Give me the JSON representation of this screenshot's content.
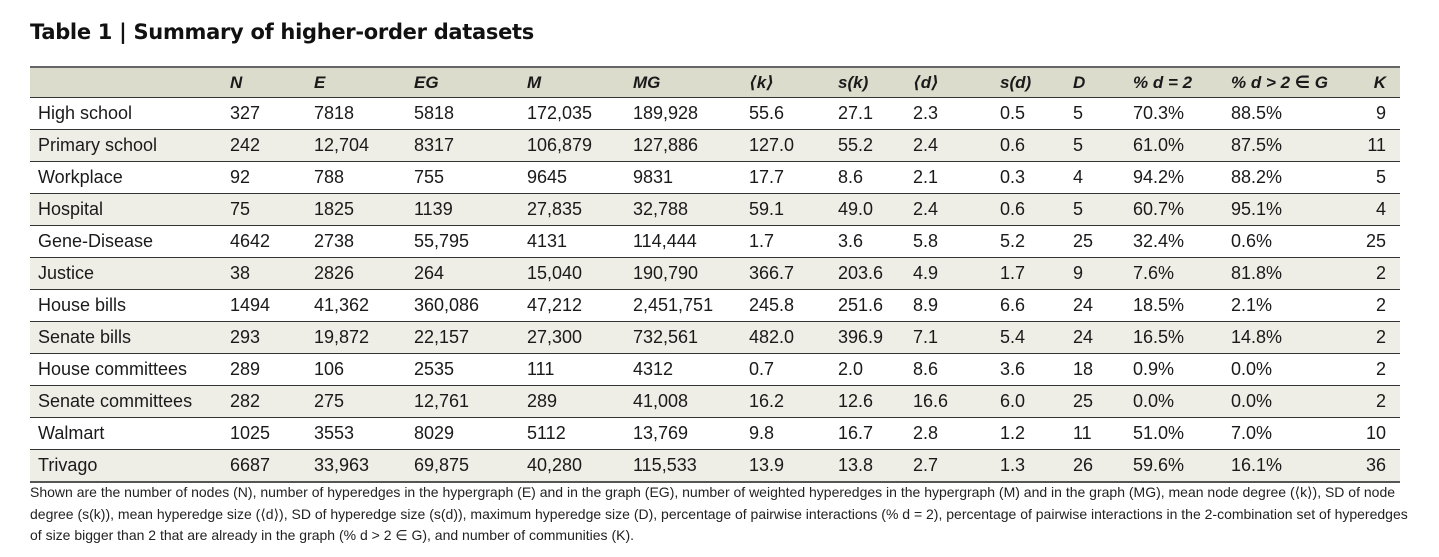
{
  "title": "Table 1 | Summary of higher-order datasets",
  "columns": [
    "",
    "N",
    "E",
    "EG",
    "M",
    "MG",
    "⟨k⟩",
    "s(k)",
    "⟨d⟩",
    "s(d)",
    "D",
    "% d = 2",
    "% d > 2 ∈ G",
    "K"
  ],
  "column_labels": [
    "",
    "N",
    "E",
    "EG",
    "M",
    "MG",
    "⟨k⟩",
    "s(k)",
    "⟨d⟩",
    "s(d)",
    "D",
    "% d = 2",
    "% d > 2 ∈ G",
    "K"
  ],
  "rows": [
    [
      "High school",
      "327",
      "7818",
      "5818",
      "172,035",
      "189,928",
      "55.6",
      "27.1",
      "2.3",
      "0.5",
      "5",
      "70.3%",
      "88.5%",
      "9"
    ],
    [
      "Primary school",
      "242",
      "12,704",
      "8317",
      "106,879",
      "127,886",
      "127.0",
      "55.2",
      "2.4",
      "0.6",
      "5",
      "61.0%",
      "87.5%",
      "11"
    ],
    [
      "Workplace",
      "92",
      "788",
      "755",
      "9645",
      "9831",
      "17.7",
      "8.6",
      "2.1",
      "0.3",
      "4",
      "94.2%",
      "88.2%",
      "5"
    ],
    [
      "Hospital",
      "75",
      "1825",
      "1139",
      "27,835",
      "32,788",
      "59.1",
      "49.0",
      "2.4",
      "0.6",
      "5",
      "60.7%",
      "95.1%",
      "4"
    ],
    [
      "Gene-Disease",
      "4642",
      "2738",
      "55,795",
      "4131",
      "114,444",
      "1.7",
      "3.6",
      "5.8",
      "5.2",
      "25",
      "32.4%",
      "0.6%",
      "25"
    ],
    [
      "Justice",
      "38",
      "2826",
      "264",
      "15,040",
      "190,790",
      "366.7",
      "203.6",
      "4.9",
      "1.7",
      "9",
      "7.6%",
      "81.8%",
      "2"
    ],
    [
      "House bills",
      "1494",
      "41,362",
      "360,086",
      "47,212",
      "2,451,751",
      "245.8",
      "251.6",
      "8.9",
      "6.6",
      "24",
      "18.5%",
      "2.1%",
      "2"
    ],
    [
      "Senate bills",
      "293",
      "19,872",
      "22,157",
      "27,300",
      "732,561",
      "482.0",
      "396.9",
      "7.1",
      "5.4",
      "24",
      "16.5%",
      "14.8%",
      "2"
    ],
    [
      "House committees",
      "289",
      "106",
      "2535",
      "111",
      "4312",
      "0.7",
      "2.0",
      "8.6",
      "3.6",
      "18",
      "0.9%",
      "0.0%",
      "2"
    ],
    [
      "Senate committees",
      "282",
      "275",
      "12,761",
      "289",
      "41,008",
      "16.2",
      "12.6",
      "16.6",
      "6.0",
      "25",
      "0.0%",
      "0.0%",
      "2"
    ],
    [
      "Walmart",
      "1025",
      "3553",
      "8029",
      "5112",
      "13,769",
      "9.8",
      "16.7",
      "2.8",
      "1.2",
      "11",
      "51.0%",
      "7.0%",
      "10"
    ],
    [
      "Trivago",
      "6687",
      "33,963",
      "69,875",
      "40,280",
      "115,533",
      "13.9",
      "13.8",
      "2.7",
      "1.3",
      "26",
      "59.6%",
      "16.1%",
      "36"
    ]
  ],
  "caption": "Shown are the number of nodes (N), number of hyperedges in the hypergraph (E) and in the graph (EG), number of weighted hyperedges in the hypergraph (M) and in the graph (MG), mean node degree (⟨k⟩), SD of node degree (s(k)), mean hyperedge size (⟨d⟩), SD of hyperedge size (s(d)), maximum hyperedge size (D), percentage of pairwise interactions (% d = 2), percentage of pairwise interactions in the 2-combination set of hyperedges of size bigger than 2 that are already in the graph (% d > 2 ∈ G), and number of communities (K).",
  "colors": {
    "header_bg": "#dcdccd",
    "stripe_bg": "#eeeee6"
  }
}
